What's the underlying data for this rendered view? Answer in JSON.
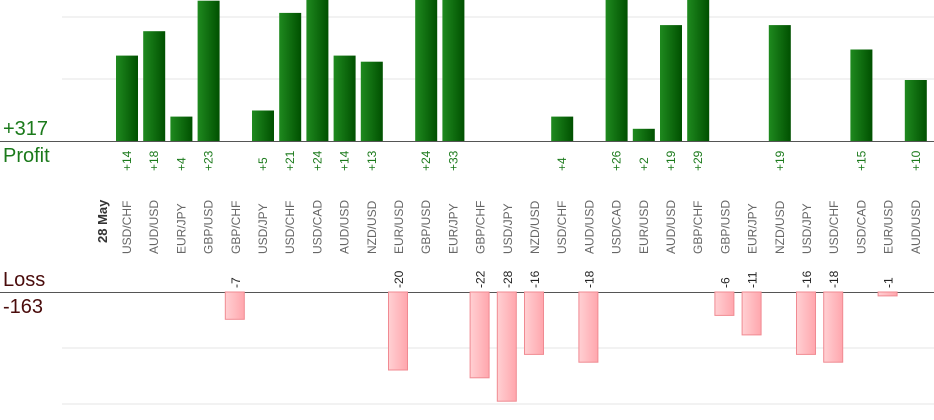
{
  "summary": {
    "profit_total": "+317",
    "profit_label": "Profit",
    "loss_label": "Loss",
    "loss_total": "-163"
  },
  "chart_data": {
    "type": "bar",
    "date_label": "28 May",
    "categories": [
      "USD/CHF",
      "AUD/USD",
      "EUR/JPY",
      "GBP/USD",
      "GBP/CHF",
      "USD/JPY",
      "USD/CHF",
      "USD/CAD",
      "AUD/USD",
      "NZD/USD",
      "EUR/USD",
      "GBP/USD",
      "EUR/JPY",
      "GBP/CHF",
      "USD/JPY",
      "NZD/USD",
      "USD/CHF",
      "AUD/USD",
      "USD/CAD",
      "EUR/USD",
      "AUD/USD",
      "GBP/CHF",
      "GBP/USD",
      "EUR/JPY",
      "NZD/USD",
      "USD/JPY",
      "USD/CHF",
      "USD/CAD",
      "EUR/USD",
      "AUD/USD"
    ],
    "series": [
      {
        "values": [
          14,
          18,
          4,
          23,
          -7,
          5,
          21,
          24,
          14,
          13,
          -20,
          24,
          33,
          -22,
          -28,
          -16,
          4,
          -18,
          26,
          2,
          19,
          29,
          -6,
          -11,
          19,
          -16,
          -18,
          15,
          -1,
          10
        ]
      }
    ],
    "labels": [
      "+14",
      "+18",
      "+4",
      "+23",
      "-7",
      "+5",
      "+21",
      "+24",
      "+14",
      "+13",
      "-20",
      "+24",
      "+33",
      "-22",
      "-28",
      "-16",
      "+4",
      "-18",
      "+26",
      "+2",
      "+19",
      "+29",
      "-6",
      "-11",
      "+19",
      "-16",
      "-18",
      "+15",
      "-1",
      "+10"
    ],
    "colors": {
      "profit_dark": "#005a00",
      "profit_light": "#1f8a1f",
      "loss_fill": "#ffb3b8",
      "loss_edge": "#f08a92",
      "profit_text": "#1b7a1b",
      "loss_text": "#4a0c0c",
      "grid": "#e6e6e6",
      "axis": "#555555",
      "label": "#666666"
    },
    "grid": true,
    "legend": "none"
  }
}
